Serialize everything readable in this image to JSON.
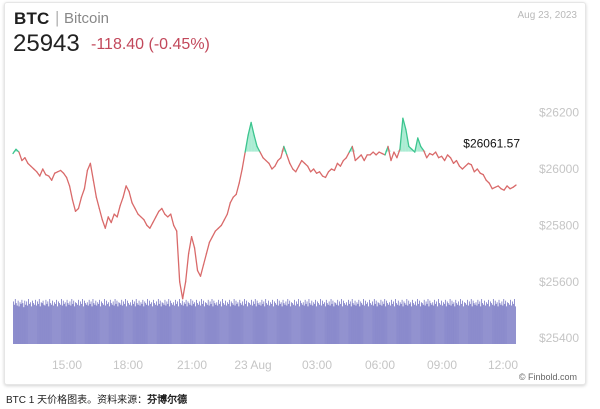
{
  "header": {
    "symbol": "BTC",
    "separator": "|",
    "name": "Bitcoin",
    "date": "Aug 23, 2023",
    "price": "25943",
    "change": "-118.40 (-0.45%)"
  },
  "caption": {
    "text": "BTC 1 天价格图表。资料来源：",
    "source_name": "芬博尔德"
  },
  "watermark": "© Finbold.com",
  "colors": {
    "line": "#d96a6a",
    "up_fill": "#8fe6c4",
    "up_line": "#3cc58f",
    "volume": "#4b4bb0",
    "change": "#c2485b"
  },
  "chart_data": {
    "type": "line",
    "title": "",
    "xlabel": "",
    "ylabel": "",
    "x_ticks": [
      "15:00",
      "18:00",
      "21:00",
      "23 Aug",
      "03:00",
      "06:00",
      "09:00",
      "12:00"
    ],
    "y_ticks": [
      "$25400",
      "$25600",
      "$25800",
      "$26000",
      "$26200"
    ],
    "ylim": [
      25375,
      26300
    ],
    "reference_price": 26061.57,
    "last_price_label": "$26061.57",
    "grid": false,
    "series": [
      {
        "values": [
          26055,
          26070,
          26060,
          26030,
          26040,
          26020,
          26010,
          26000,
          25990,
          25975,
          26000,
          25980,
          25975,
          25960,
          25985,
          25990,
          25995,
          25985,
          25970,
          25940,
          25890,
          25850,
          25860,
          25900,
          25930,
          25995,
          26020,
          25960,
          25900,
          25860,
          25820,
          25790,
          25830,
          25810,
          25840,
          25830,
          25870,
          25900,
          25940,
          25920,
          25880,
          25860,
          25840,
          25830,
          25820,
          25800,
          25790,
          25810,
          25830,
          25850,
          25860,
          25840,
          25830,
          25840,
          25800,
          25780,
          25600,
          25540,
          25600,
          25700,
          25760,
          25720,
          25640,
          25620,
          25660,
          25700,
          25740,
          25760,
          25780,
          25790,
          25800,
          25820,
          25840,
          25880,
          25900,
          25910,
          25950,
          26000,
          26060,
          26120,
          26165,
          26120,
          26080,
          26060,
          26040,
          26030,
          26020,
          26000,
          26010,
          26030,
          26040,
          26080,
          26050,
          26020,
          26000,
          25990,
          26010,
          26030,
          26020,
          26010,
          25990,
          26000,
          25985,
          25990,
          25975,
          25970,
          25990,
          26000,
          25995,
          26020,
          26010,
          26030,
          26040,
          26060,
          26080,
          26030,
          26040,
          26050,
          26030,
          26050,
          26050,
          26060,
          26050,
          26060,
          26055,
          26050,
          26080,
          26030,
          26060,
          26040,
          26070,
          26180,
          26140,
          26080,
          26070,
          26060,
          26110,
          26080,
          26065,
          26040,
          26055,
          26050,
          26060,
          26040,
          26045,
          26030,
          26050,
          26040,
          26020,
          26030,
          26010,
          26000,
          26010,
          26020,
          26015,
          25990,
          26000,
          25985,
          25980,
          25960,
          25950,
          25930,
          25935,
          25940,
          25930,
          25925,
          25940,
          25930,
          25935,
          25943
        ]
      }
    ],
    "volume": [
      52,
      48,
      55,
      50,
      47,
      53,
      46,
      51,
      49,
      54,
      50,
      45,
      53,
      48,
      52,
      47,
      55,
      49,
      51,
      46,
      53,
      50,
      48,
      54,
      47,
      52,
      49,
      55,
      46,
      51,
      50,
      53,
      48,
      47,
      54,
      49,
      52,
      46,
      55,
      50,
      48,
      53,
      47,
      51,
      49,
      54,
      46,
      52,
      50,
      48,
      55,
      47,
      53,
      49,
      51,
      46,
      54,
      50,
      48,
      52,
      47,
      55,
      49,
      53,
      46,
      51,
      50,
      48,
      54,
      47,
      52,
      49,
      55,
      46,
      53,
      50,
      48,
      51,
      47,
      54,
      49,
      52,
      46,
      55,
      50,
      48,
      53,
      47,
      51,
      49,
      54,
      46,
      52,
      50,
      48,
      55,
      47,
      53,
      49,
      51,
      46,
      54,
      50,
      48,
      52,
      47,
      55,
      49,
      53,
      46,
      51,
      50,
      48,
      54,
      47,
      52,
      49,
      55,
      46,
      53,
      50,
      48,
      51,
      47,
      54,
      49,
      52,
      46,
      55,
      50,
      48,
      53,
      47,
      51,
      49,
      54,
      46,
      52,
      50,
      48,
      55,
      47,
      53,
      49,
      51,
      46,
      54,
      50,
      48,
      52,
      47,
      55,
      49,
      53,
      46,
      51,
      50,
      48,
      54,
      47,
      52,
      49,
      55,
      46,
      53,
      50,
      48,
      51,
      47,
      54,
      49,
      52,
      46,
      55,
      50,
      48,
      53,
      47,
      51,
      49,
      54,
      46,
      52,
      50,
      48,
      55,
      47,
      53,
      49,
      51,
      46,
      54,
      50,
      48,
      52,
      47,
      55,
      49,
      53,
      46,
      51,
      50,
      48,
      54,
      47,
      52,
      49,
      55,
      46,
      53,
      50,
      48,
      51,
      47,
      54,
      49,
      52,
      46,
      55,
      50,
      48,
      53,
      47,
      51,
      49,
      54,
      46,
      52,
      50,
      48,
      55,
      47,
      53,
      49,
      51,
      46,
      54,
      50,
      48,
      52,
      47,
      55,
      49,
      53,
      46,
      51,
      50,
      48,
      54,
      47,
      52,
      49,
      55,
      46,
      53,
      50,
      48,
      51,
      47,
      54,
      49,
      52,
      46,
      55,
      50,
      48,
      53,
      47,
      51,
      49,
      54,
      46,
      52,
      50,
      48,
      55,
      47,
      53,
      49,
      51,
      46,
      54,
      50,
      48,
      52,
      47,
      55,
      49,
      53,
      46,
      51,
      50,
      48,
      54,
      47,
      52,
      49,
      55,
      46,
      53,
      50,
      48,
      51,
      47,
      54,
      49,
      52,
      46,
      55,
      50,
      48,
      53,
      47,
      51,
      49,
      54,
      46,
      52,
      50,
      48,
      55,
      47,
      53,
      49,
      51,
      46,
      54,
      50,
      48,
      52,
      47,
      55,
      49,
      53,
      46,
      51,
      50,
      48,
      54,
      47,
      52,
      49,
      55,
      46,
      53,
      50,
      48,
      51,
      47,
      54,
      49,
      52,
      46,
      55,
      50,
      48,
      53,
      47,
      51,
      49,
      54,
      46,
      52,
      50,
      48,
      55,
      47,
      53,
      49,
      51,
      46,
      54,
      50,
      48,
      52,
      47,
      55,
      49,
      53,
      46,
      51,
      50,
      48,
      54,
      47,
      52,
      49,
      55,
      46,
      53,
      50,
      48,
      51,
      47,
      54,
      49,
      52,
      46,
      55,
      50,
      48,
      53,
      47,
      51,
      49,
      54,
      46,
      52,
      50,
      48,
      55,
      47,
      53,
      49,
      51,
      46,
      54,
      50,
      48,
      52,
      47,
      55,
      49,
      53,
      46,
      51,
      50,
      48,
      54,
      47,
      52,
      49,
      55,
      46,
      53,
      50,
      48,
      51,
      47,
      54,
      49,
      52,
      46,
      55,
      50,
      48,
      53,
      47,
      51,
      49,
      54,
      46,
      52,
      50,
      48,
      55,
      47,
      53,
      49,
      51,
      46,
      54,
      50,
      48,
      52,
      47,
      55,
      49,
      53,
      46,
      51,
      50,
      48,
      54,
      47,
      52,
      49,
      55,
      46,
      53,
      50,
      48,
      51,
      47,
      54,
      49,
      52,
      46,
      55,
      50,
      48,
      53,
      47,
      51,
      49,
      54,
      46,
      52,
      50,
      48,
      55,
      47,
      53,
      49,
      51,
      46,
      54,
      50,
      48,
      52,
      47,
      55,
      49,
      53,
      46,
      51,
      50,
      48,
      54,
      47,
      52,
      49,
      55,
      46
    ]
  }
}
